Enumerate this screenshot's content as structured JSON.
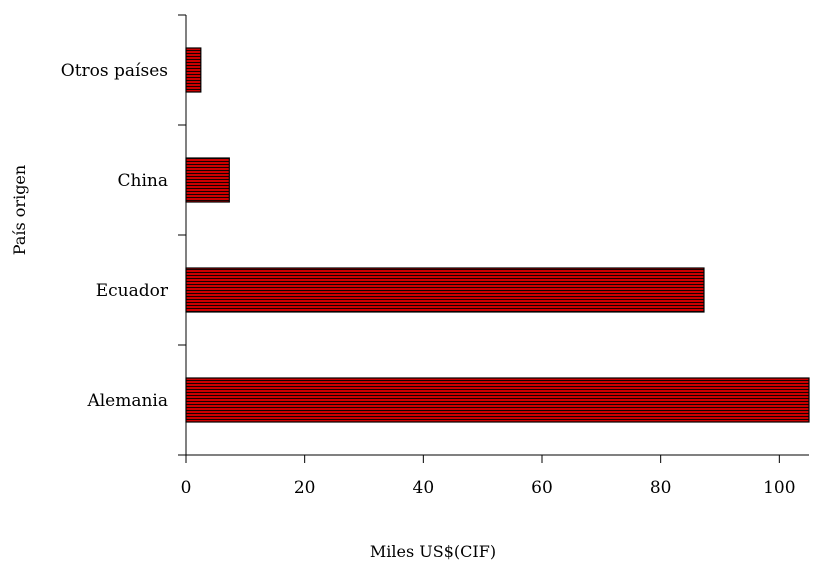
{
  "chart_data": {
    "type": "bar",
    "orientation": "horizontal",
    "categories": [
      "Alemania",
      "Ecuador",
      "China",
      "Otros países"
    ],
    "values": [
      105,
      87.3,
      7.3,
      2.5
    ],
    "xlabel": "Miles US$(CIF)",
    "ylabel": "País origen",
    "xlim": [
      0,
      105
    ],
    "xticks": [
      0,
      20,
      40,
      60,
      80,
      100
    ],
    "grid": false,
    "bar_color": "#cc0000",
    "bar_stripe_color": "#1a0000"
  }
}
